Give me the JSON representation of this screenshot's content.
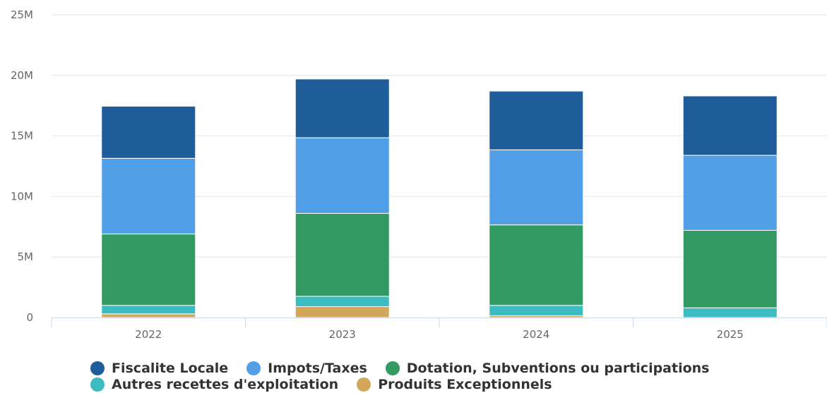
{
  "chart_data": {
    "type": "bar",
    "stacked": true,
    "categories": [
      "2022",
      "2023",
      "2024",
      "2025"
    ],
    "y_ticks": [
      "0",
      "5M",
      "10M",
      "15M",
      "20M",
      "25M"
    ],
    "ylim": [
      0,
      25000000
    ],
    "grid": true,
    "legend_position": "bottom",
    "series": [
      {
        "name": "Produits Exceptionnels",
        "color": "#D3A75A",
        "values": [
          300000,
          900000,
          150000,
          0
        ]
      },
      {
        "name": "Autres recettes d'exploitation",
        "color": "#3CBCC0",
        "values": [
          700000,
          850000,
          850000,
          800000
        ]
      },
      {
        "name": "Dotation, Subventions ou participations",
        "color": "#349A63",
        "values": [
          5900000,
          6850000,
          6650000,
          6400000
        ]
      },
      {
        "name": "Impots/Taxes",
        "color": "#519FE6",
        "values": [
          6250000,
          6250000,
          6200000,
          6200000
        ]
      },
      {
        "name": "Fiscalite Locale",
        "color": "#1E5C9A",
        "values": [
          4300000,
          4850000,
          4850000,
          4900000
        ]
      }
    ],
    "legend_order": [
      "Fiscalite Locale",
      "Impots/Taxes",
      "Dotation, Subventions ou participations",
      "Autres recettes d'exploitation",
      "Produits Exceptionnels"
    ]
  }
}
